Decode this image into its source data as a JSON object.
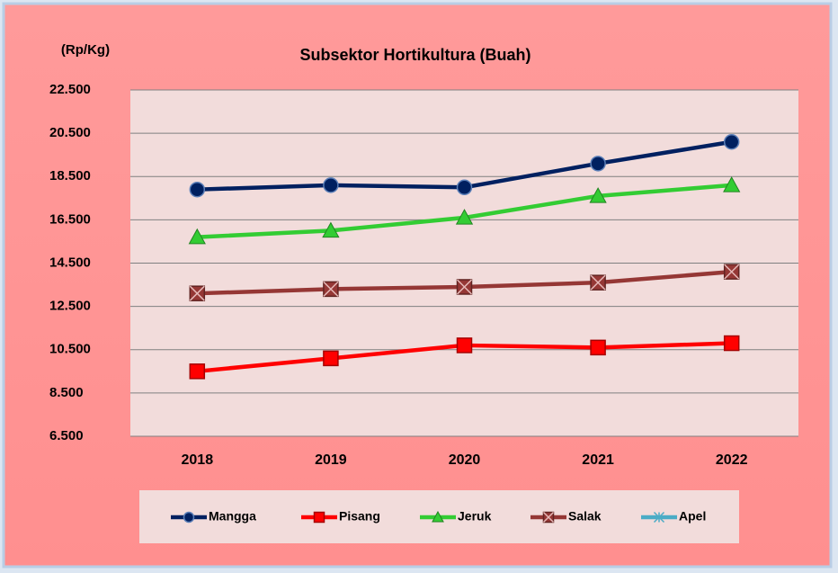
{
  "chart_data": {
    "type": "line",
    "title": "Subsektor Hortikultura  (Buah)",
    "y_label": "(Rp/Kg)",
    "categories": [
      "2018",
      "2019",
      "2020",
      "2021",
      "2022"
    ],
    "series": [
      {
        "name": "Mangga",
        "color": "#002060",
        "marker": "circle",
        "values": [
          17900,
          18100,
          18000,
          19100,
          20100
        ]
      },
      {
        "name": "Pisang",
        "color": "#ff0000",
        "marker": "square",
        "values": [
          9500,
          10100,
          10700,
          10600,
          10800
        ]
      },
      {
        "name": "Jeruk",
        "color": "#33cc33",
        "marker": "triangle",
        "values": [
          15700,
          16000,
          16600,
          17600,
          18100
        ]
      },
      {
        "name": "Salak",
        "color": "#953735",
        "marker": "x-square",
        "values": [
          13100,
          13300,
          13400,
          13600,
          14100
        ]
      },
      {
        "name": "Apel",
        "color": "#4bacc6",
        "marker": "asterisk",
        "values": [
          null,
          null,
          null,
          null,
          null
        ]
      }
    ],
    "ylim": [
      6500,
      22500
    ],
    "yticks": [
      {
        "value": 6500,
        "label": "6.500"
      },
      {
        "value": 8500,
        "label": "8.500"
      },
      {
        "value": 10500,
        "label": "10.500"
      },
      {
        "value": 12500,
        "label": "12.500"
      },
      {
        "value": 14500,
        "label": "14.500"
      },
      {
        "value": 16500,
        "label": "16.500"
      },
      {
        "value": 18500,
        "label": "18.500"
      },
      {
        "value": 20500,
        "label": "20.500"
      },
      {
        "value": 22500,
        "label": "22.500"
      }
    ],
    "grid": true,
    "legend": "bottom"
  }
}
